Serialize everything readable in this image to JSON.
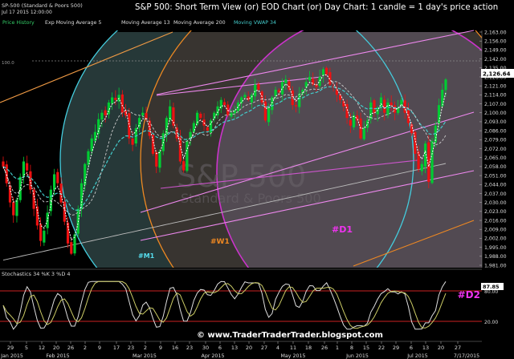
{
  "header": {
    "symbol": "SP-500 (Standard & Poors 500)",
    "datetime": "Jul 17 2015 12:00:00",
    "title": "S&P 500: Short Term View (or) EOD Chart (or) Day Chart: 1 candle = 1 day's price action"
  },
  "legend": [
    {
      "label": "Price History",
      "color": "#33cc66"
    },
    {
      "label": "Exp Moving Average 5",
      "color": "#dddddd"
    },
    {
      "label": "Moving Average 13",
      "color": "#dddddd"
    },
    {
      "label": "Moving Average 200",
      "color": "#dddddd"
    },
    {
      "label": "Moving VWAP 34",
      "color": "#44cccc"
    }
  ],
  "watermark": {
    "line1": "S&P 500",
    "line2": "Standard & Poors 500"
  },
  "markers": {
    "level100": "100.0",
    "m1": "#M1",
    "w1": "#W1",
    "d1": "#D1",
    "d2": "#D2"
  },
  "stoch": {
    "label": "Stochastics 34 %K 3 %D 4",
    "value": "87.85"
  },
  "last_price": "2,126.64",
  "footer": "© www.TraderTraderTrader.blogspot.com",
  "colors": {
    "up": "#00cc33",
    "down": "#ee1111",
    "m1": "#44ccdd",
    "w1": "#ee8822",
    "d1": "#cc33cc",
    "channel": "#ee88ee"
  },
  "chart_data": {
    "type": "candlestick",
    "y_ticks": [
      "2,163.00",
      "2,156.00",
      "2,149.00",
      "2,142.00",
      "2,135.00",
      "2,128.00",
      "2,121.00",
      "2,114.00",
      "2,107.00",
      "2,100.00",
      "2,093.00",
      "2,086.00",
      "2,079.00",
      "2,072.00",
      "2,065.00",
      "2,058.00",
      "2,051.00",
      "2,044.00",
      "2,037.00",
      "2,030.00",
      "2,023.00",
      "2,016.00",
      "2,009.00",
      "2,002.00",
      "1,995.00",
      "1,988.00",
      "1,981.00"
    ],
    "ylim": [
      1981,
      2163
    ],
    "stoch_ticks": [
      "80.00",
      "20.00"
    ],
    "x_day_ticks": [
      "29",
      "5",
      "12",
      "20",
      "26",
      "2",
      "9",
      "17",
      "23",
      "2",
      "9",
      "16",
      "23",
      "30",
      "6",
      "13",
      "20",
      "27",
      "4",
      "11",
      "18",
      "26",
      "1",
      "8",
      "15",
      "22",
      "29",
      "6",
      "13",
      "20",
      "27"
    ],
    "x_month_ticks": [
      "Jan 2015",
      "Feb 2015",
      "Mar 2015",
      "Apr 2015",
      "May 2015",
      "Jun 2015",
      "Jul 2015",
      "7/17/2015"
    ],
    "closes": [
      2058,
      2045,
      2030,
      2020,
      2032,
      2050,
      2062,
      2055,
      2040,
      2025,
      2012,
      2000,
      2008,
      2022,
      2040,
      2052,
      2045,
      2030,
      2015,
      1998,
      1990,
      2005,
      2025,
      2045,
      2060,
      2070,
      2080,
      2085,
      2095,
      2100,
      2098,
      2108,
      2112,
      2110,
      2114,
      2100,
      2098,
      2080,
      2075,
      2088,
      2096,
      2100,
      2095,
      2082,
      2068,
      2058,
      2070,
      2084,
      2096,
      2105,
      2090,
      2080,
      2062,
      2055,
      2078,
      2085,
      2092,
      2100,
      2096,
      2090,
      2086,
      2094,
      2100,
      2105,
      2110,
      2106,
      2098,
      2100,
      2102,
      2108,
      2112,
      2114,
      2110,
      2114,
      2122,
      2118,
      2108,
      2094,
      2104,
      2112,
      2118,
      2116,
      2124,
      2126,
      2118,
      2106,
      2105,
      2115,
      2118,
      2124,
      2128,
      2122,
      2120,
      2128,
      2134,
      2130,
      2122,
      2120,
      2114,
      2110,
      2105,
      2096,
      2090,
      2098,
      2094,
      2080,
      2088,
      2094,
      2108,
      2100,
      2104,
      2112,
      2100,
      2108,
      2106,
      2100,
      2104,
      2110,
      2100,
      2092,
      2084,
      2068,
      2056,
      2060,
      2076,
      2046,
      2078,
      2090,
      2106,
      2118,
      2126
    ]
  }
}
